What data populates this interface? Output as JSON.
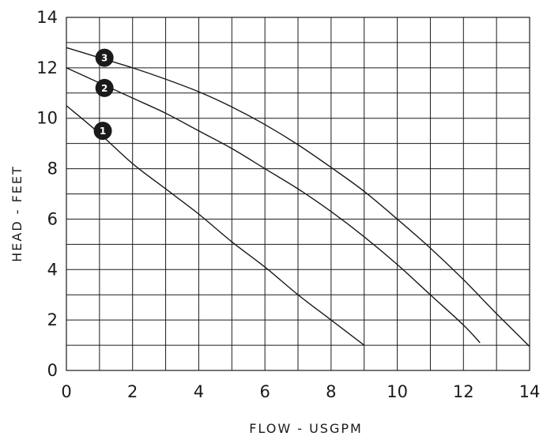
{
  "chart_data": {
    "type": "line",
    "xlabel": "FLOW - USGPM",
    "ylabel": "HEAD - FEET",
    "xlim": [
      0,
      14
    ],
    "ylim": [
      0,
      14
    ],
    "x_ticks": [
      0,
      2,
      4,
      6,
      8,
      10,
      12,
      14
    ],
    "y_ticks": [
      0,
      2,
      4,
      6,
      8,
      10,
      12,
      14
    ],
    "x_tick_labels": [
      "0",
      "2",
      "4",
      "6",
      "8",
      "10",
      "12",
      "14"
    ],
    "y_tick_labels": [
      "0",
      "2",
      "4",
      "6",
      "8",
      "10",
      "12",
      "14"
    ],
    "grid": true,
    "series": [
      {
        "marker_label": "1",
        "marker_at": [
          1.1,
          9.5
        ],
        "points": [
          [
            0,
            10.5
          ],
          [
            1,
            9.4
          ],
          [
            2,
            8.2
          ],
          [
            3,
            7.2
          ],
          [
            4,
            6.2
          ],
          [
            5,
            5.1
          ],
          [
            6,
            4.1
          ],
          [
            7,
            3.0
          ],
          [
            8,
            2.0
          ],
          [
            9,
            1.0
          ]
        ]
      },
      {
        "marker_label": "2",
        "marker_at": [
          1.15,
          11.2
        ],
        "points": [
          [
            0,
            12.0
          ],
          [
            1,
            11.4
          ],
          [
            2,
            10.8
          ],
          [
            3,
            10.2
          ],
          [
            4,
            9.5
          ],
          [
            5,
            8.8
          ],
          [
            6,
            8.0
          ],
          [
            7,
            7.2
          ],
          [
            8,
            6.3
          ],
          [
            9,
            5.3
          ],
          [
            10,
            4.2
          ],
          [
            11,
            3.0
          ],
          [
            12,
            1.8
          ],
          [
            12.5,
            1.1
          ]
        ]
      },
      {
        "marker_label": "3",
        "marker_at": [
          1.15,
          12.4
        ],
        "points": [
          [
            0,
            12.8
          ],
          [
            1,
            12.4
          ],
          [
            2,
            12.0
          ],
          [
            3,
            11.55
          ],
          [
            4,
            11.05
          ],
          [
            5,
            10.45
          ],
          [
            6,
            9.75
          ],
          [
            7,
            8.95
          ],
          [
            8,
            8.05
          ],
          [
            9,
            7.1
          ],
          [
            10,
            6.0
          ],
          [
            11,
            4.85
          ],
          [
            12,
            3.6
          ],
          [
            13,
            2.25
          ],
          [
            14,
            0.95
          ]
        ]
      }
    ]
  }
}
